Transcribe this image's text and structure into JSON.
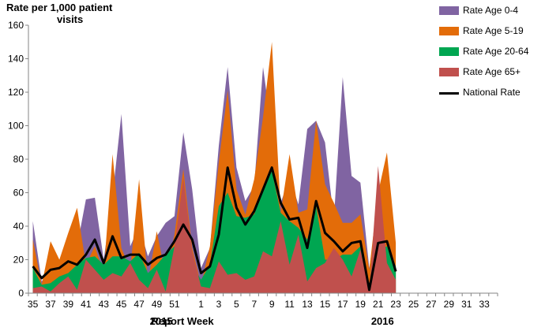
{
  "chart_data": {
    "type": "area",
    "ylabel": [
      "Rate per 1,000 patient",
      "visits"
    ],
    "ylim": [
      0,
      160
    ],
    "yticks": [
      0,
      20,
      40,
      60,
      80,
      100,
      120,
      140,
      160
    ],
    "x_label": "Report Week",
    "year_labels": [
      {
        "text": "2015",
        "after_index": 14
      },
      {
        "text": "2016",
        "after_index": 39
      }
    ],
    "x_ticks": [
      "35",
      "37",
      "39",
      "41",
      "43",
      "45",
      "47",
      "49",
      "51",
      "1",
      "3",
      "5",
      "7",
      "9",
      "11",
      "13",
      "15",
      "17",
      "19",
      "21",
      "23",
      "25",
      "27",
      "29",
      "31",
      "33"
    ],
    "categories": [
      "35",
      "36",
      "37",
      "38",
      "39",
      "40",
      "41",
      "42",
      "43",
      "44",
      "45",
      "46",
      "47",
      "48",
      "49",
      "50",
      "51",
      "52",
      "53",
      "1",
      "2",
      "3",
      "4",
      "5",
      "6",
      "7",
      "8",
      "9",
      "10",
      "11",
      "12",
      "13",
      "14",
      "15",
      "16",
      "17",
      "18",
      "19",
      "20",
      "21",
      "22",
      "23",
      "24",
      "25",
      "26",
      "27",
      "28",
      "29",
      "30",
      "31",
      "32",
      "33",
      "34"
    ],
    "series": [
      {
        "name": "Rate Age 0-4",
        "color": "#8064A2",
        "values": [
          43,
          7,
          15,
          20,
          25,
          28,
          56,
          57,
          20,
          58,
          107,
          28,
          40,
          22,
          34,
          42,
          46,
          96,
          62,
          15,
          27,
          88,
          135,
          75,
          55,
          64,
          135,
          96,
          54,
          69,
          53,
          98,
          103,
          90,
          44,
          129,
          70,
          66,
          15,
          50,
          82,
          15,
          null,
          null,
          null,
          null,
          null,
          null,
          null,
          null,
          null,
          null,
          null
        ]
      },
      {
        "name": "Rate Age 5-19",
        "color": "#E36C09",
        "values": [
          32,
          5,
          31,
          20,
          36,
          51,
          17,
          28,
          12,
          83,
          27,
          14,
          68,
          7,
          37,
          10,
          35,
          74,
          27,
          5,
          28,
          78,
          121,
          62,
          47,
          68,
          105,
          150,
          48,
          83,
          48,
          50,
          103,
          65,
          54,
          42,
          42,
          47,
          14,
          60,
          84,
          30,
          null,
          null,
          null,
          null,
          null,
          null,
          null,
          null,
          null,
          null,
          null
        ]
      },
      {
        "name": "Rate Age 20-64",
        "color": "#00A651",
        "values": [
          15,
          5,
          6,
          10,
          12,
          17,
          21,
          22,
          17,
          22,
          22,
          19,
          24,
          12,
          17,
          23,
          28,
          36,
          17,
          8,
          17,
          52,
          60,
          46,
          45,
          47,
          62,
          73,
          48,
          43,
          39,
          32,
          52,
          20,
          20,
          23,
          23,
          28,
          5,
          26,
          28,
          16,
          null,
          null,
          null,
          null,
          null,
          null,
          null,
          null,
          null,
          null,
          null
        ]
      },
      {
        "name": "Rate Age 65+",
        "color": "#C0504D",
        "values": [
          3,
          4,
          1,
          6,
          10,
          2,
          20,
          14,
          8,
          12,
          10,
          18,
          8,
          3,
          14,
          1,
          28,
          69,
          25,
          4,
          3,
          19,
          11,
          12,
          8,
          10,
          25,
          22,
          43,
          17,
          35,
          7,
          15,
          18,
          27,
          20,
          10,
          26,
          1,
          76,
          18,
          8,
          null,
          null,
          null,
          null,
          null,
          null,
          null,
          null,
          null,
          null,
          null
        ]
      },
      {
        "name": "National Rate",
        "color": "#000000",
        "line": true,
        "values": [
          16,
          9,
          14,
          15,
          19,
          17,
          23,
          32,
          18,
          34,
          21,
          23,
          23,
          17,
          21,
          23,
          31,
          41,
          32,
          12,
          16,
          35,
          75,
          51,
          41,
          49,
          62,
          75,
          54,
          44,
          45,
          27,
          55,
          36,
          31,
          25,
          30,
          31,
          2,
          30,
          31,
          13,
          null,
          null,
          null,
          null,
          null,
          null,
          null,
          null,
          null,
          null,
          null
        ]
      }
    ]
  }
}
